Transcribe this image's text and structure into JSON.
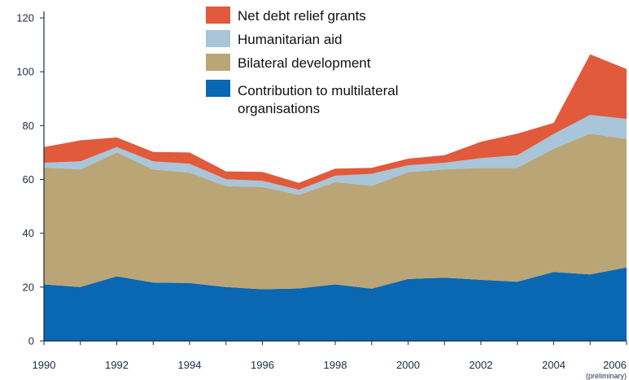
{
  "chart_data": {
    "type": "area",
    "stacked": true,
    "x": [
      1990,
      1991,
      1992,
      1993,
      1994,
      1995,
      1996,
      1997,
      1998,
      1999,
      2000,
      2001,
      2002,
      2003,
      2004,
      2005,
      2006
    ],
    "xticks": [
      "1990",
      "1992",
      "1994",
      "1996",
      "1998",
      "2000",
      "2002",
      "2004",
      "2006"
    ],
    "xlim": [
      1990,
      2006
    ],
    "ylim": [
      0,
      120
    ],
    "yticks": [
      "0",
      "20",
      "40",
      "60",
      "80",
      "100",
      "120"
    ],
    "xtick_note": "(preliminary)",
    "grid": false,
    "legend_position": "top-center",
    "series": [
      {
        "name": "Contribution to multilateral organisations",
        "color": "#0a67b1",
        "values": [
          21,
          20,
          24,
          21.7,
          21.5,
          20,
          19.2,
          19.5,
          21,
          19.4,
          23,
          23.5,
          22.7,
          22,
          25.6,
          24.7,
          27.3
        ]
      },
      {
        "name": "Bilateral development",
        "color": "#b9a575",
        "values": [
          43.5,
          43.7,
          46,
          42,
          41,
          37.5,
          38,
          34.8,
          38,
          38.2,
          39.7,
          40.2,
          41.6,
          42.3,
          45.8,
          52.3,
          47.7
        ]
      },
      {
        "name": "Humanitarian aid",
        "color": "#a8c5da",
        "values": [
          1.7,
          3,
          2,
          3,
          3.3,
          2.6,
          2.3,
          1.9,
          2.4,
          4.5,
          2.6,
          2.5,
          3.6,
          4.7,
          5.5,
          7,
          7.5
        ]
      },
      {
        "name": "Net debt relief grants",
        "color": "#e05a3b",
        "values": [
          5.8,
          7.8,
          3.6,
          3.5,
          4.2,
          2.9,
          3.3,
          2.5,
          2.6,
          2.2,
          2.4,
          2.8,
          6.1,
          8,
          4.1,
          22.5,
          18.5
        ]
      }
    ],
    "legend_order": [
      "Net debt relief grants",
      "Humanitarian aid",
      "Bilateral development",
      "Contribution to multilateral organisations"
    ]
  }
}
